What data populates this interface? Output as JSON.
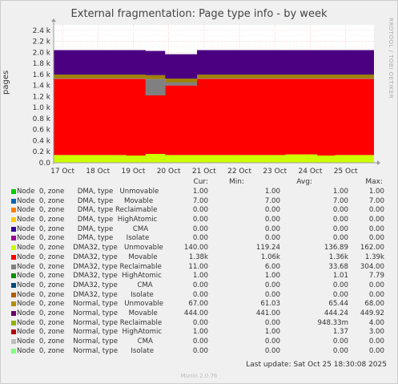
{
  "title": "External fragmentation: Page type info - by week",
  "ylabel": "pages",
  "sidelabel": "RRDTOOL / TOBI OETIKER",
  "legend_head": {
    "cur": "Cur:",
    "min": "Min:",
    "avg": "Avg:",
    "max": "Max:"
  },
  "footer": "Last update: Sat Oct 25 18:30:08 2025",
  "munin": "Munin 2.0.76",
  "chart_data": {
    "type": "area",
    "title": "External fragmentation: Page type info - by week",
    "ylabel": "pages",
    "xlabel": "",
    "stacked": true,
    "grid": true,
    "ylim": [
      0,
      2.5
    ],
    "y_unit": "k",
    "y_ticks": [
      "0.0",
      "0.2 k",
      "0.4 k",
      "0.6 k",
      "0.8 k",
      "1.0 k",
      "1.2 k",
      "1.4 k",
      "1.6 k",
      "1.8 k",
      "2.0 k",
      "2.2 k",
      "2.4 k"
    ],
    "x_ticks": [
      "17 Oct",
      "18 Oct",
      "19 Oct",
      "20 Oct",
      "21 Oct",
      "22 Oct",
      "23 Oct",
      "24 Oct",
      "25 Oct"
    ],
    "x_range_days": [
      16.75,
      25.8
    ],
    "series": [
      {
        "name": "Node  0, zone    DMA32, type   Unmovable",
        "color": "#ccff00",
        "points": [
          [
            16.75,
            0.14
          ],
          [
            18.8,
            0.14
          ],
          [
            18.8,
            0.13
          ],
          [
            19.35,
            0.13
          ],
          [
            19.35,
            0.16
          ],
          [
            19.9,
            0.16
          ],
          [
            19.9,
            0.14
          ],
          [
            23.3,
            0.14
          ],
          [
            23.3,
            0.15
          ],
          [
            24.2,
            0.15
          ],
          [
            24.2,
            0.13
          ],
          [
            24.7,
            0.13
          ],
          [
            24.7,
            0.14
          ],
          [
            25.8,
            0.14
          ]
        ]
      },
      {
        "name": "Node  0, zone    DMA32, type     Movable",
        "color": "#ff0000",
        "points": [
          [
            16.75,
            1.38
          ],
          [
            18.8,
            1.38
          ],
          [
            18.8,
            1.39
          ],
          [
            19.35,
            1.39
          ],
          [
            19.35,
            1.06
          ],
          [
            19.9,
            1.06
          ],
          [
            19.9,
            1.26
          ],
          [
            20.8,
            1.26
          ],
          [
            20.8,
            1.38
          ],
          [
            23.3,
            1.38
          ],
          [
            23.3,
            1.37
          ],
          [
            24.2,
            1.37
          ],
          [
            24.2,
            1.39
          ],
          [
            24.7,
            1.39
          ],
          [
            24.7,
            1.38
          ],
          [
            25.8,
            1.38
          ]
        ]
      },
      {
        "name": "Node  0, zone    DMA32, type Reclaimable",
        "color": "#808080",
        "points": [
          [
            16.75,
            0.011
          ],
          [
            19.35,
            0.011
          ],
          [
            19.35,
            0.3
          ],
          [
            19.9,
            0.3
          ],
          [
            19.9,
            0.06
          ],
          [
            20.8,
            0.06
          ],
          [
            20.8,
            0.011
          ],
          [
            25.8,
            0.011
          ]
        ]
      },
      {
        "name": "Node  0, zone    Normal, type   Unmovable",
        "color": "#a08000",
        "points": [
          [
            16.75,
            0.067
          ],
          [
            25.8,
            0.067
          ]
        ]
      },
      {
        "name": "Node  0, zone    Normal, type     Movable",
        "color": "#4b0082",
        "points": [
          [
            16.75,
            0.444
          ],
          [
            19.35,
            0.444
          ],
          [
            19.35,
            0.441
          ],
          [
            20.8,
            0.441
          ],
          [
            20.8,
            0.444
          ],
          [
            25.8,
            0.444
          ]
        ]
      }
    ],
    "legend": [
      {
        "label": "Node  0, zone      DMA, type   Unmovable",
        "color": "#00cc00",
        "cur": "1.00",
        "min": "1.00",
        "avg": "1.00",
        "max": "1.00"
      },
      {
        "label": "Node  0, zone      DMA, type     Movable",
        "color": "#0066b3",
        "cur": "7.00",
        "min": "7.00",
        "avg": "7.00",
        "max": "7.00"
      },
      {
        "label": "Node  0, zone      DMA, type Reclaimable",
        "color": "#ff8000",
        "cur": "0.00",
        "min": "0.00",
        "avg": "0.00",
        "max": "0.00"
      },
      {
        "label": "Node  0, zone      DMA, type  HighAtomic",
        "color": "#ffcc00",
        "cur": "0.00",
        "min": "0.00",
        "avg": "0.00",
        "max": "0.00"
      },
      {
        "label": "Node  0, zone      DMA, type         CMA",
        "color": "#330099",
        "cur": "0.00",
        "min": "0.00",
        "avg": "0.00",
        "max": "0.00"
      },
      {
        "label": "Node  0, zone      DMA, type      Isolate",
        "color": "#990099",
        "cur": "0.00",
        "min": "0.00",
        "avg": "0.00",
        "max": "0.00"
      },
      {
        "label": "Node  0, zone    DMA32, type   Unmovable",
        "color": "#ccff00",
        "cur": "140.00",
        "min": "119.24",
        "avg": "136.89",
        "max": "162.00"
      },
      {
        "label": "Node  0, zone    DMA32, type     Movable",
        "color": "#ff0000",
        "cur": "1.38k",
        "min": "1.06k",
        "avg": "1.36k",
        "max": "1.39k"
      },
      {
        "label": "Node  0, zone    DMA32, type Reclaimable",
        "color": "#808080",
        "cur": "11.00",
        "min": "6.00",
        "avg": "33.68",
        "max": "304.00"
      },
      {
        "label": "Node  0, zone    DMA32, type  HighAtomic",
        "color": "#008f00",
        "cur": "1.00",
        "min": "1.00",
        "avg": "1.01",
        "max": "7.79"
      },
      {
        "label": "Node  0, zone    DMA32, type         CMA",
        "color": "#00487d",
        "cur": "0.00",
        "min": "0.00",
        "avg": "0.00",
        "max": "0.00"
      },
      {
        "label": "Node  0, zone    DMA32, type      Isolate",
        "color": "#b35a00",
        "cur": "0.00",
        "min": "0.00",
        "avg": "0.00",
        "max": "0.00"
      },
      {
        "label": "Node  0, zone    Normal, type   Unmovable",
        "color": "#b38f00",
        "cur": "67.00",
        "min": "61.03",
        "avg": "65.44",
        "max": "68.00"
      },
      {
        "label": "Node  0, zone    Normal, type     Movable",
        "color": "#6b006b",
        "cur": "444.00",
        "min": "441.00",
        "avg": "444.24",
        "max": "449.92"
      },
      {
        "label": "Node  0, zone    Normal, type Reclaimable",
        "color": "#8fb300",
        "cur": "0.00",
        "min": "0.00",
        "avg": "948.33m",
        "max": "4.00"
      },
      {
        "label": "Node  0, zone    Normal, type  HighAtomic",
        "color": "#b30000",
        "cur": "1.00",
        "min": "1.00",
        "avg": "1.37",
        "max": "3.00"
      },
      {
        "label": "Node  0, zone    Normal, type         CMA",
        "color": "#bebebe",
        "cur": "0.00",
        "min": "0.00",
        "avg": "0.00",
        "max": "0.00"
      },
      {
        "label": "Node  0, zone    Normal, type      Isolate",
        "color": "#80ff80",
        "cur": "0.00",
        "min": "0.00",
        "avg": "0.00",
        "max": "0.00"
      }
    ]
  }
}
